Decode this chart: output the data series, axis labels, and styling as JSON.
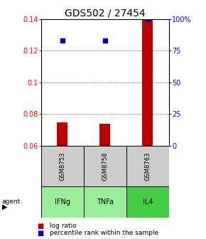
{
  "title": "GDS502 / 27454",
  "samples": [
    "GSM8753",
    "GSM8758",
    "GSM8763"
  ],
  "agents": [
    "IFNg",
    "TNFa",
    "IL4"
  ],
  "log_ratios": [
    0.075,
    0.074,
    0.14
  ],
  "percentile_ranks": [
    0.83,
    0.83,
    1.0
  ],
  "ylim_left": [
    0.06,
    0.14
  ],
  "ylim_right": [
    0,
    1.0
  ],
  "yticks_left": [
    0.06,
    0.08,
    0.1,
    0.12,
    0.14
  ],
  "ytick_labels_left": [
    "0.06",
    "0.08",
    "0.1",
    "0.12",
    "0.14"
  ],
  "yticks_right": [
    0,
    0.25,
    0.5,
    0.75,
    1.0
  ],
  "ytick_labels_right": [
    "0",
    "25",
    "50",
    "75",
    "100%"
  ],
  "bar_color": "#bb0000",
  "dot_color": "#0000bb",
  "agent_colors": [
    "#99ee99",
    "#99ee99",
    "#44cc44"
  ],
  "sample_bg_color": "#cccccc",
  "bar_width": 0.25,
  "title_fontsize": 10,
  "tick_fontsize": 7,
  "legend_fontsize": 6.5,
  "sample_fontsize": 6,
  "agent_fontsize": 7
}
